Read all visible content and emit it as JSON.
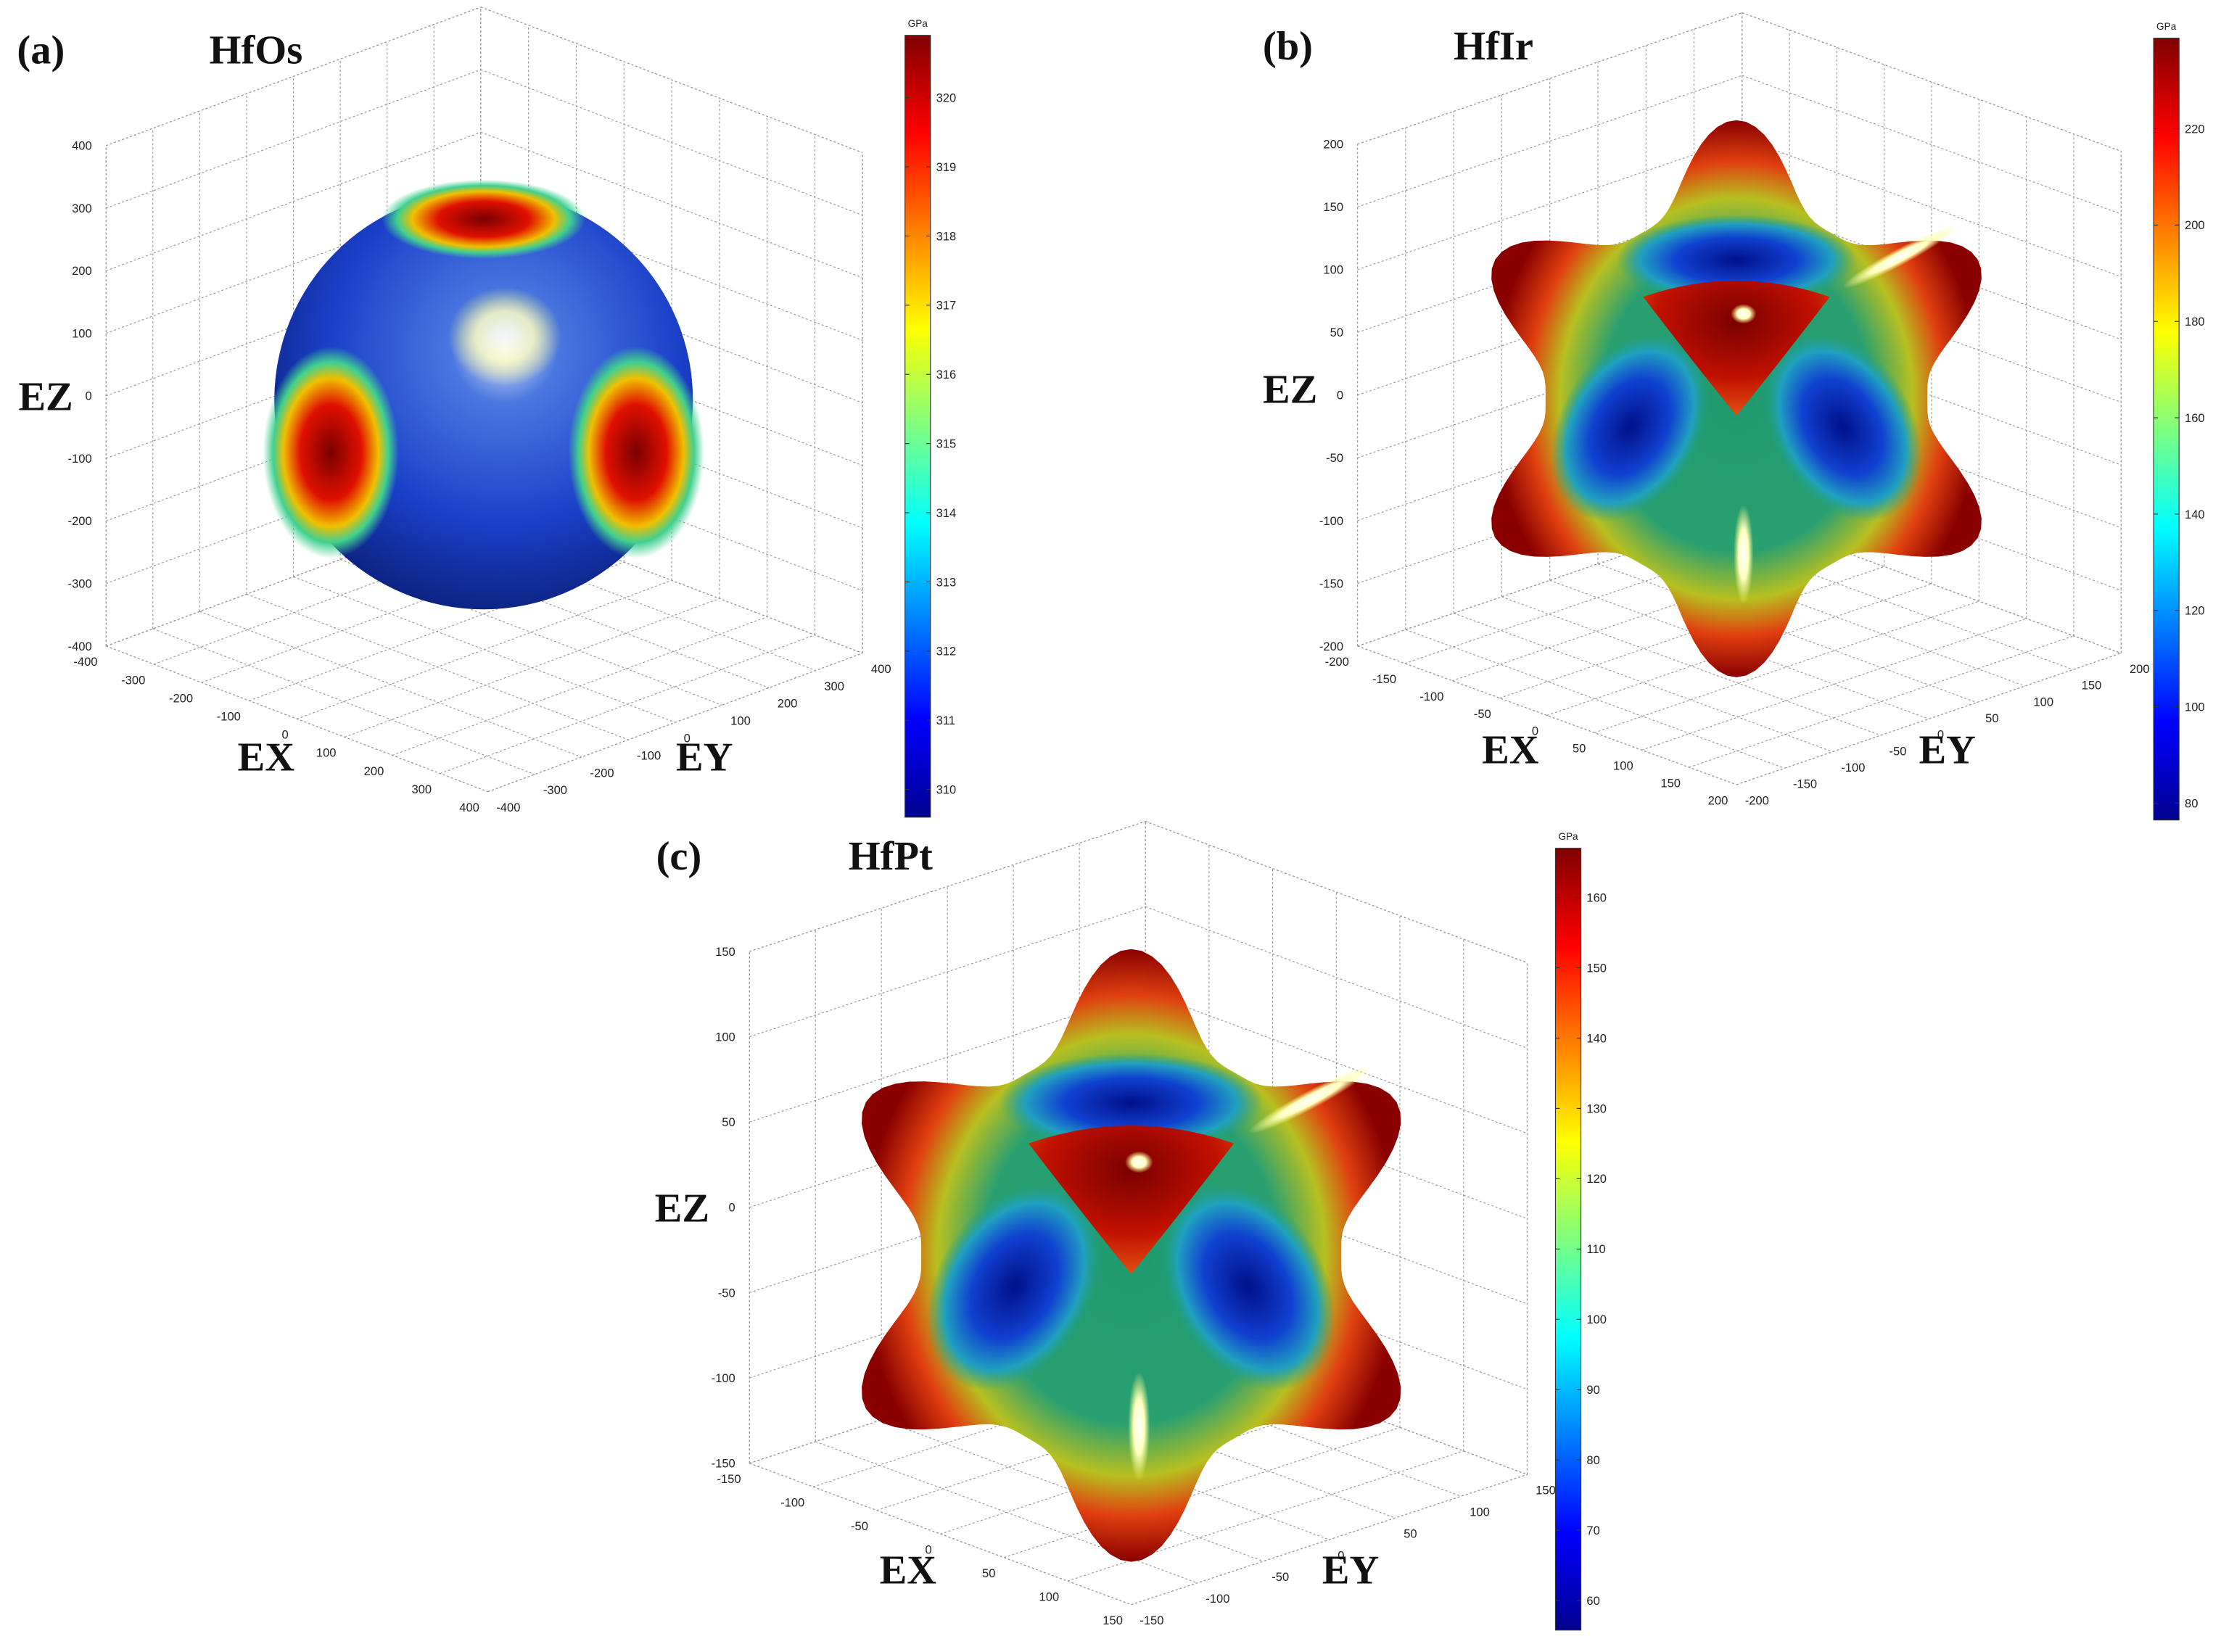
{
  "chart_data": [
    {
      "type": "surface3d",
      "panel_label": "(a)",
      "title": "HfOs",
      "xlabel": "EX",
      "ylabel": "EY",
      "zlabel": "EZ",
      "xlim": [
        -400,
        400
      ],
      "ylim": [
        -400,
        400
      ],
      "zlim": [
        -400,
        400
      ],
      "xticks": [
        -400,
        -300,
        -200,
        -100,
        0,
        100,
        200,
        300,
        400
      ],
      "yticks": [
        -400,
        -300,
        -200,
        -100,
        0,
        100,
        200,
        300,
        400
      ],
      "zticks": [
        -400,
        -300,
        -200,
        -100,
        0,
        100,
        200,
        300,
        400
      ],
      "grid": true,
      "colorbar": {
        "label": "GPa",
        "colormap": "jet",
        "clim": [
          309.6,
          320.9
        ],
        "ticks": [
          310,
          311,
          312,
          313,
          314,
          315,
          316,
          317,
          318,
          319,
          320
        ]
      }
    },
    {
      "type": "surface3d",
      "panel_label": "(b)",
      "title": "HfIr",
      "xlabel": "EX",
      "ylabel": "EY",
      "zlabel": "EZ",
      "xlim": [
        -200,
        200
      ],
      "ylim": [
        -200,
        200
      ],
      "zlim": [
        -200,
        200
      ],
      "xticks": [
        -200,
        -150,
        -100,
        -50,
        0,
        50,
        100,
        150,
        200
      ],
      "yticks": [
        -200,
        -150,
        -100,
        -50,
        0,
        50,
        100,
        150,
        200
      ],
      "zticks": [
        -200,
        -150,
        -100,
        -50,
        0,
        50,
        100,
        150,
        200
      ],
      "grid": true,
      "colorbar": {
        "label": "GPa",
        "colormap": "jet",
        "clim": [
          76.5,
          238.8
        ],
        "ticks": [
          80,
          100,
          120,
          140,
          160,
          180,
          200,
          220
        ]
      }
    },
    {
      "type": "surface3d",
      "panel_label": "(c)",
      "title": "HfPt",
      "xlabel": "EX",
      "ylabel": "EY",
      "zlabel": "EZ",
      "xlim": [
        -150,
        150
      ],
      "ylim": [
        -150,
        150
      ],
      "zlim": [
        -150,
        150
      ],
      "xticks": [
        -150,
        -100,
        -50,
        0,
        50,
        100,
        150
      ],
      "yticks": [
        -150,
        -100,
        -50,
        0,
        50,
        100,
        150
      ],
      "zticks": [
        -150,
        -100,
        -50,
        0,
        50,
        100,
        150
      ],
      "grid": true,
      "colorbar": {
        "label": "GPa",
        "colormap": "jet",
        "clim": [
          55.8,
          167
        ],
        "ticks": [
          60,
          70,
          80,
          90,
          100,
          110,
          120,
          130,
          140,
          150,
          160
        ]
      }
    }
  ]
}
